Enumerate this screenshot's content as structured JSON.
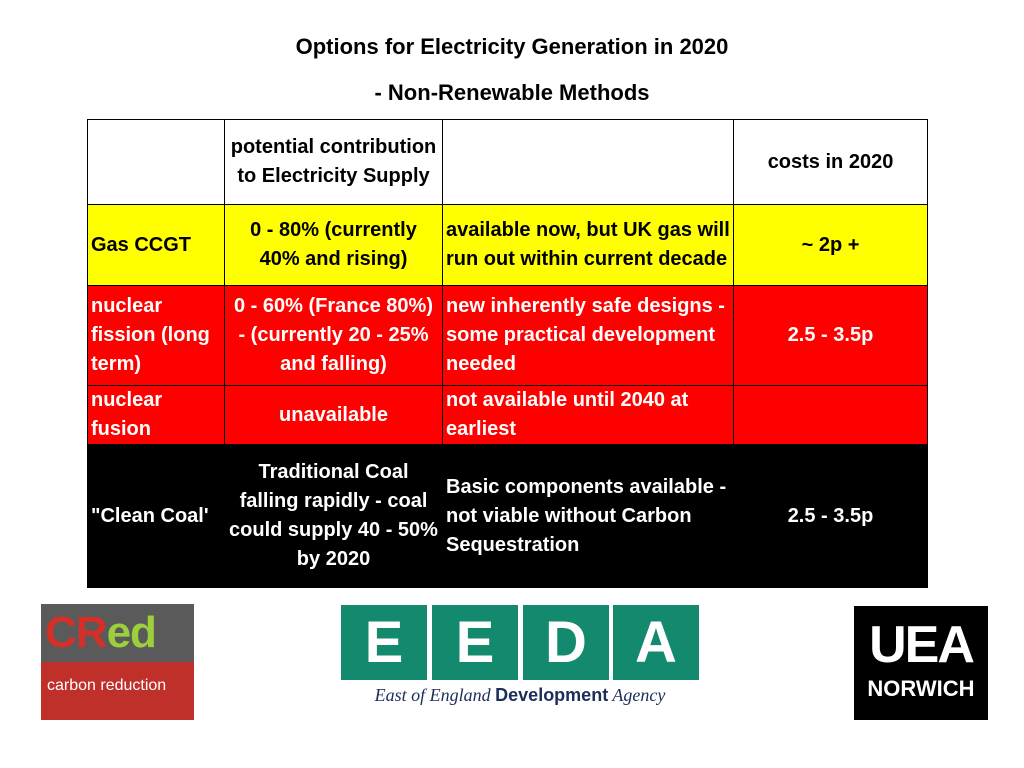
{
  "title": {
    "line1": "Options for Electricity Generation in 2020",
    "line2": "- Non-Renewable Methods"
  },
  "table": {
    "header": [
      "",
      "potential contribution to Electricity Supply",
      "",
      "costs in 2020"
    ],
    "rows": [
      {
        "method": "Gas CCGT",
        "contribution": "0 - 80% (currently 40% and rising)",
        "status": "available now, but UK gas will run out within current decade",
        "cost": "~ 2p +"
      },
      {
        "method": "nuclear fission (long term)",
        "contribution": "0 - 60% (France 80%) - (currently 20 - 25% and falling)",
        "status": "new inherently safe designs - some practical development needed",
        "cost": "2.5 - 3.5p"
      },
      {
        "method": "nuclear fusion",
        "contribution": "unavailable",
        "status": "not available until 2040 at earliest",
        "cost": ""
      },
      {
        "method": "\"Clean Coal'",
        "contribution": "Traditional Coal falling rapidly - coal could supply 40 - 50% by 2020",
        "status": "Basic components available - not viable without Carbon Sequestration",
        "cost": "2.5 - 3.5p"
      }
    ],
    "row_colors": [
      "#ffff00",
      "#ff0000",
      "#ff0000",
      "#000000"
    ]
  },
  "logos": {
    "cred": {
      "part1": "CR",
      "part2": "ed",
      "subtitle": "carbon reduction"
    },
    "eeda": {
      "letters": [
        "E",
        "E",
        "D",
        "A"
      ],
      "tagline_1": "East of England ",
      "tagline_2": "Development",
      "tagline_3": " Agency"
    },
    "uea": {
      "top": "UEA",
      "bottom": "NORWICH"
    }
  }
}
